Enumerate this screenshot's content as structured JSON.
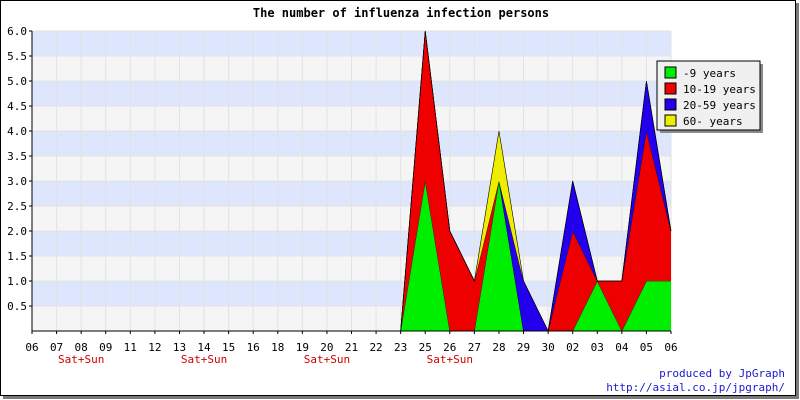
{
  "chart_data": {
    "type": "area",
    "stacked": true,
    "title": "The number of influenza infection persons",
    "xlabel": "",
    "ylabel": "",
    "ylim": [
      0,
      6
    ],
    "yticks": [
      "0.5",
      "1.0",
      "1.5",
      "2.0",
      "2.5",
      "3.0",
      "3.5",
      "4.0",
      "4.5",
      "5.0",
      "5.5",
      "6.0"
    ],
    "categories": [
      "06",
      "07",
      "08",
      "09",
      "11",
      "12",
      "13",
      "14",
      "15",
      "16",
      "18",
      "19",
      "20",
      "21",
      "22",
      "23",
      "25",
      "26",
      "27",
      "28",
      "29",
      "30",
      "02",
      "03",
      "04",
      "05",
      "06"
    ],
    "weekend_labels": [
      {
        "category_index": 2,
        "text": "Sat+Sun"
      },
      {
        "category_index": 7,
        "text": "Sat+Sun"
      },
      {
        "category_index": 12,
        "text": "Sat+Sun"
      },
      {
        "category_index": 17,
        "text": "Sat+Sun"
      }
    ],
    "grid": true,
    "legend_position": "top-right",
    "series": [
      {
        "name": "-9 years",
        "color": "#00ee00",
        "values": [
          0,
          0,
          0,
          0,
          0,
          0,
          0,
          0,
          0,
          0,
          0,
          0,
          0,
          0,
          0,
          0,
          3,
          0,
          0,
          3,
          0,
          0,
          0,
          1,
          0,
          1,
          1
        ]
      },
      {
        "name": "10-19 years",
        "color": "#ee0000",
        "values": [
          0,
          0,
          0,
          0,
          0,
          0,
          0,
          0,
          0,
          0,
          0,
          0,
          0,
          0,
          0,
          0,
          3,
          2,
          1,
          0,
          0,
          0,
          2,
          0,
          1,
          3,
          1
        ]
      },
      {
        "name": "20-59 years",
        "color": "#2200ee",
        "values": [
          0,
          0,
          0,
          0,
          0,
          0,
          0,
          0,
          0,
          0,
          0,
          0,
          0,
          0,
          0,
          0,
          0,
          0,
          0,
          0,
          1,
          0,
          1,
          0,
          0,
          1,
          0
        ]
      },
      {
        "name": "60- years",
        "color": "#eeee00",
        "values": [
          0,
          0,
          0,
          0,
          0,
          0,
          0,
          0,
          0,
          0,
          0,
          0,
          0,
          0,
          0,
          0,
          0,
          0,
          0,
          1,
          0,
          0,
          0,
          0,
          0,
          0,
          0
        ]
      }
    ]
  },
  "credits": {
    "line1": "produced by JpGraph",
    "line2": "http://asial.co.jp/jpgraph/"
  }
}
